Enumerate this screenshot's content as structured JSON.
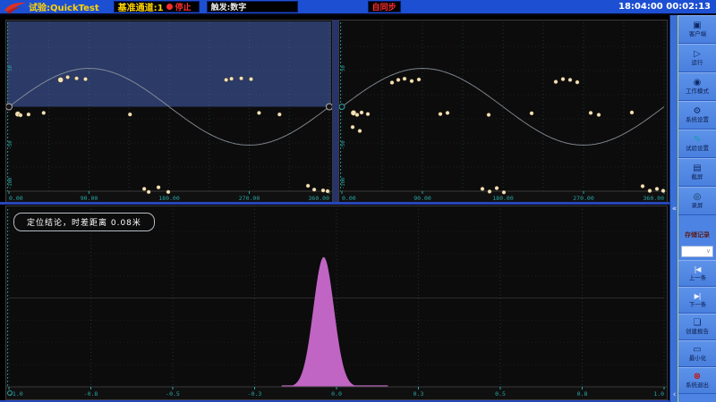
{
  "theme": {
    "topbar_blue": "#1d4fd2",
    "sidebar_blue": "#4d84e4",
    "strip_blue": "#3a6fd8",
    "accent_yellow": "#ffd400",
    "alert_red": "#ff2e2e",
    "teal": "#2aa5a5",
    "plot_bg": "#0c0c0c",
    "selection_navy": "#2b3a66",
    "peak_magenta": "#c065c4",
    "dot_cream": "#f4e2ba",
    "sine_gray": "#9098a2"
  },
  "topbar": {
    "test_label": "试验:QuickTest",
    "channel_label": "基准通道:1",
    "stop_label": "停止",
    "trigger_label": "触发:数字",
    "sync_label": "自同步",
    "time_label": "18:04:00 00:02:13"
  },
  "bottom": {
    "conclusion": "定位结论，时差距离 0.08米"
  },
  "sidebar": {
    "collapse_top": "«",
    "collapse_bottom": "‹",
    "record_section_label": "存储记录",
    "select_chevron": "∨",
    "items": [
      {
        "id": "client",
        "label": "客户端",
        "glyph": "▣"
      },
      {
        "id": "run",
        "label": "运行",
        "glyph": "▷"
      },
      {
        "id": "work-mode",
        "label": "工作模式",
        "glyph": "◉"
      },
      {
        "id": "system-settings",
        "label": "系统设置",
        "glyph": "⚙"
      },
      {
        "id": "test-settings",
        "label": "试验设置",
        "glyph": "✎"
      },
      {
        "id": "screenshot",
        "label": "截屏",
        "glyph": "▤"
      },
      {
        "id": "screen-record",
        "label": "录屏",
        "glyph": "◎"
      },
      {
        "id": "prev-record",
        "label": "上一条",
        "glyph": "|◀"
      },
      {
        "id": "next-record",
        "label": "下一条",
        "glyph": "▶|"
      },
      {
        "id": "create-report",
        "label": "创建报告",
        "glyph": "❏"
      },
      {
        "id": "minimize",
        "label": "最小化",
        "glyph": "▭"
      },
      {
        "id": "exit",
        "label": "系统退出",
        "glyph": "⊗"
      }
    ]
  },
  "chart_data": [
    {
      "type": "scatter",
      "name": "phase-plot-left",
      "x_ticks": [
        "0.00",
        "90.00",
        "180.00",
        "270.00",
        "360.00"
      ],
      "xlim": [
        0,
        360
      ],
      "ylim": [
        -2.2,
        2.2
      ],
      "y_tick_labels": [
        {
          "value": 1,
          "label": "50"
        },
        {
          "value": -1,
          "label": "-50"
        },
        {
          "value": -2,
          "label": "-100"
        }
      ],
      "reference_curve": {
        "shape": "sine",
        "amplitude": 1,
        "period": 360
      },
      "selection_upper_half": true,
      "grid": true,
      "points": [
        [
          58,
          0.7,
          3
        ],
        [
          66,
          0.77
        ],
        [
          76,
          0.74
        ],
        [
          86,
          0.72
        ],
        [
          244,
          0.7
        ],
        [
          250,
          0.73
        ],
        [
          261,
          0.74
        ],
        [
          272,
          0.72
        ],
        [
          10,
          -0.19,
          3
        ],
        [
          13,
          -0.22
        ],
        [
          22,
          -0.2
        ],
        [
          39,
          -0.16
        ],
        [
          136,
          -0.2
        ],
        [
          281,
          -0.16
        ],
        [
          304,
          -0.2
        ],
        [
          152,
          -2.14
        ],
        [
          157,
          -2.22
        ],
        [
          168,
          -2.1
        ],
        [
          179,
          -2.22
        ],
        [
          336,
          -2.06
        ],
        [
          343,
          -2.16
        ],
        [
          353,
          -2.18
        ],
        [
          358,
          -2.2
        ]
      ]
    },
    {
      "type": "scatter",
      "name": "phase-plot-right",
      "x_ticks": [
        "0.00",
        "90.00",
        "180.00",
        "270.00",
        "360.00"
      ],
      "xlim": [
        0,
        360
      ],
      "ylim": [
        -2.2,
        2.2
      ],
      "y_tick_labels": [
        {
          "value": 1,
          "label": "50"
        },
        {
          "value": -1,
          "label": "-50"
        },
        {
          "value": -2,
          "label": "-100"
        }
      ],
      "reference_curve": {
        "shape": "sine",
        "amplitude": 1,
        "period": 360
      },
      "selection_upper_half": false,
      "grid": true,
      "points": [
        [
          13,
          -0.16,
          3
        ],
        [
          17,
          -0.21
        ],
        [
          22,
          -0.15
        ],
        [
          29,
          -0.19
        ],
        [
          12,
          -0.53
        ],
        [
          20,
          -0.63
        ],
        [
          56,
          0.63
        ],
        [
          63,
          0.7
        ],
        [
          70,
          0.73
        ],
        [
          78,
          0.67
        ],
        [
          86,
          0.71
        ],
        [
          239,
          0.65
        ],
        [
          247,
          0.72
        ],
        [
          255,
          0.7
        ],
        [
          263,
          0.64
        ],
        [
          110,
          -0.19
        ],
        [
          118,
          -0.16
        ],
        [
          164,
          -0.21
        ],
        [
          212,
          -0.17
        ],
        [
          278,
          -0.16
        ],
        [
          287,
          -0.21
        ],
        [
          324,
          -0.15
        ],
        [
          157,
          -2.14
        ],
        [
          165,
          -2.21
        ],
        [
          173,
          -2.12
        ],
        [
          181,
          -2.23
        ],
        [
          336,
          -2.07
        ],
        [
          344,
          -2.19
        ],
        [
          352,
          -2.14
        ],
        [
          359,
          -2.19
        ]
      ]
    },
    {
      "type": "area",
      "name": "time-difference-location-peak",
      "x_ticks": [
        "-1.0",
        "-0.8",
        "-0.5",
        "-0.3",
        "0.0",
        "0.3",
        "0.5",
        "0.8",
        "1.0"
      ],
      "xlim": [
        -1.02,
        1.02
      ],
      "peak": {
        "center": -0.04,
        "sigma": 0.032,
        "height_fraction": 0.73,
        "skirt": [
          -0.17,
          0.16
        ]
      },
      "grid": true,
      "annotation": "定位结论，时差距离 0.08米"
    }
  ]
}
